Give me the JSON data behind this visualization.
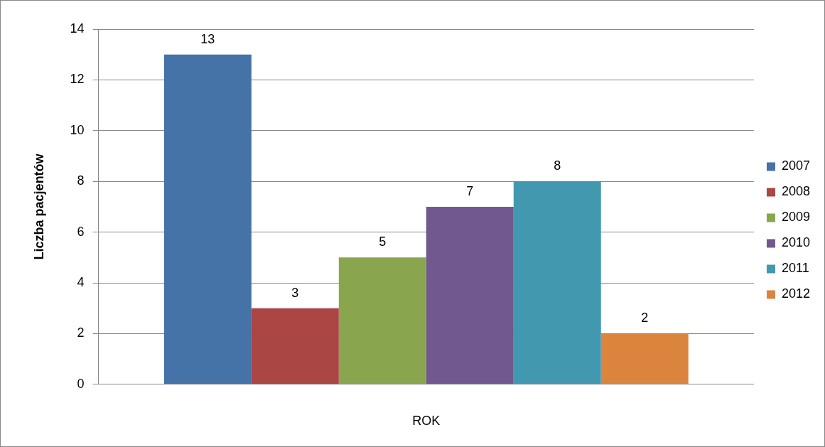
{
  "chart_data": {
    "type": "bar",
    "xlabel": "ROK",
    "ylabel": "Liczba pacjentów",
    "categories": [
      null
    ],
    "series": [
      {
        "name": "2007",
        "color": "#4572a7",
        "values": [
          13
        ]
      },
      {
        "name": "2008",
        "color": "#aa4643",
        "values": [
          3
        ]
      },
      {
        "name": "2009",
        "color": "#89a54e",
        "values": [
          5
        ]
      },
      {
        "name": "2010",
        "color": "#71588f",
        "values": [
          7
        ]
      },
      {
        "name": "2011",
        "color": "#4198af",
        "values": [
          8
        ]
      },
      {
        "name": "2012",
        "color": "#db843d",
        "values": [
          2
        ]
      }
    ],
    "ylim": [
      0,
      14
    ],
    "yticks": [
      0,
      2,
      4,
      6,
      8,
      10,
      12,
      14
    ],
    "grid": "y",
    "legend": "right",
    "data_labels": true
  }
}
